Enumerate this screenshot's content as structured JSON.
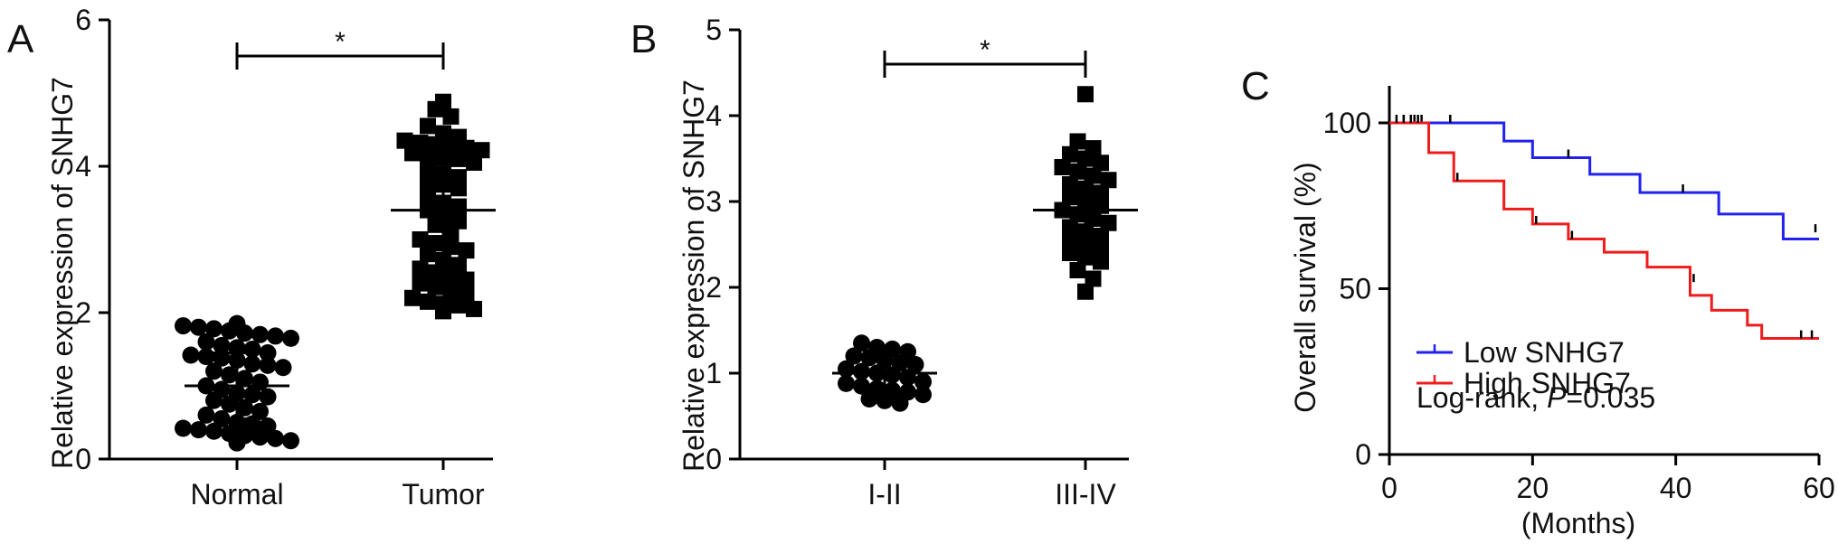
{
  "chart_data": [
    {
      "panel": "A",
      "type": "scatter",
      "ylabel": "Relative expression of SNHG7",
      "ylim": [
        0,
        6
      ],
      "yticks": [
        0,
        2,
        4,
        6
      ],
      "categories": [
        "Normal",
        "Tumor"
      ],
      "significance": "*",
      "series": [
        {
          "category": "Normal",
          "marker": "circle",
          "mean": 1.0,
          "sd": 0.45,
          "values": [
            1.85,
            1.82,
            1.8,
            1.78,
            1.75,
            1.72,
            1.7,
            1.68,
            1.65,
            1.6,
            1.55,
            1.52,
            1.5,
            1.45,
            1.42,
            1.4,
            1.38,
            1.35,
            1.3,
            1.28,
            1.25,
            1.2,
            1.15,
            1.1,
            1.05,
            1.0,
            0.95,
            0.9,
            0.88,
            0.85,
            0.8,
            0.75,
            0.7,
            0.65,
            0.6,
            0.55,
            0.5,
            0.48,
            0.45,
            0.42,
            0.4,
            0.38,
            0.35,
            0.32,
            0.3,
            0.28,
            0.25,
            0.22
          ]
        },
        {
          "category": "Tumor",
          "marker": "square",
          "mean": 3.4,
          "sd": 0.85,
          "values": [
            4.88,
            4.78,
            4.68,
            4.55,
            4.45,
            4.4,
            4.35,
            4.32,
            4.3,
            4.28,
            4.25,
            4.22,
            4.18,
            4.15,
            4.12,
            4.1,
            4.05,
            3.98,
            3.9,
            3.85,
            3.8,
            3.75,
            3.7,
            3.6,
            3.5,
            3.45,
            3.4,
            3.32,
            3.25,
            3.2,
            3.1,
            3.0,
            2.95,
            2.9,
            2.85,
            2.8,
            2.72,
            2.65,
            2.6,
            2.55,
            2.5,
            2.45,
            2.4,
            2.35,
            2.3,
            2.25,
            2.2,
            2.15,
            2.12,
            2.1,
            2.05,
            2.02
          ]
        }
      ]
    },
    {
      "panel": "B",
      "type": "scatter",
      "ylabel": "Relative expression of SNHG7",
      "ylim": [
        0,
        5
      ],
      "yticks": [
        0,
        1,
        2,
        3,
        4,
        5
      ],
      "categories": [
        "I-II",
        "III-IV"
      ],
      "significance": "*",
      "series": [
        {
          "category": "I-II",
          "marker": "circle",
          "mean": 1.0,
          "sd": 0.2,
          "values": [
            1.35,
            1.3,
            1.28,
            1.25,
            1.2,
            1.18,
            1.15,
            1.12,
            1.1,
            1.05,
            1.02,
            1.0,
            0.98,
            0.95,
            0.9,
            0.88,
            0.85,
            0.82,
            0.8,
            0.78,
            0.75,
            0.7,
            0.68,
            0.65
          ]
        },
        {
          "category": "III-IV",
          "marker": "square",
          "mean": 2.9,
          "sd": 0.52,
          "values": [
            4.25,
            3.7,
            3.62,
            3.55,
            3.5,
            3.45,
            3.4,
            3.35,
            3.3,
            3.25,
            3.2,
            3.15,
            3.1,
            3.05,
            3.0,
            2.95,
            2.9,
            2.85,
            2.8,
            2.75,
            2.7,
            2.65,
            2.6,
            2.55,
            2.5,
            2.45,
            2.4,
            2.35,
            2.3,
            2.2,
            2.1,
            1.95
          ]
        }
      ]
    },
    {
      "panel": "C",
      "type": "line",
      "ylabel": "Overall survival (%)",
      "xlabel": "(Months)",
      "xlim": [
        0,
        60
      ],
      "ylim": [
        0,
        100
      ],
      "xticks": [
        0,
        20,
        40,
        60
      ],
      "yticks": [
        0,
        50,
        100
      ],
      "annotation_prefix": "Log-rank, ",
      "annotation_p": "P",
      "annotation_value": "=0.035",
      "series": [
        {
          "name": "Low SNHG7",
          "color": "#2121f0",
          "steps": [
            [
              0,
              100
            ],
            [
              16,
              100
            ],
            [
              16,
              94.5
            ],
            [
              20,
              94.5
            ],
            [
              20,
              89.5
            ],
            [
              28,
              89.5
            ],
            [
              28,
              84.5
            ],
            [
              35,
              84.5
            ],
            [
              35,
              79
            ],
            [
              46,
              79
            ],
            [
              46,
              72.5
            ],
            [
              55,
              72.5
            ],
            [
              55,
              65
            ],
            [
              60,
              65
            ]
          ],
          "censor": [
            [
              2,
              100
            ],
            [
              3.5,
              100
            ],
            [
              4.5,
              100
            ],
            [
              8.5,
              100
            ],
            [
              25,
              89.5
            ],
            [
              41,
              79
            ],
            [
              59.5,
              67
            ]
          ]
        },
        {
          "name": "High SNHG7",
          "color": "#ee1c1c",
          "steps": [
            [
              0,
              100
            ],
            [
              5.5,
              100
            ],
            [
              5.5,
              91
            ],
            [
              9,
              91
            ],
            [
              9,
              82.5
            ],
            [
              16,
              82.5
            ],
            [
              16,
              74
            ],
            [
              20,
              74
            ],
            [
              20,
              69.5
            ],
            [
              25,
              69.5
            ],
            [
              25,
              65
            ],
            [
              30,
              65
            ],
            [
              30,
              61
            ],
            [
              36,
              61
            ],
            [
              36,
              56.5
            ],
            [
              42,
              56.5
            ],
            [
              42,
              48
            ],
            [
              45,
              48
            ],
            [
              45,
              43.5
            ],
            [
              50,
              43.5
            ],
            [
              50,
              39
            ],
            [
              52,
              39
            ],
            [
              52,
              35
            ],
            [
              60,
              35
            ]
          ],
          "censor": [
            [
              1,
              100
            ],
            [
              2,
              100
            ],
            [
              3,
              100
            ],
            [
              4,
              100
            ],
            [
              9.5,
              82.5
            ],
            [
              20.5,
              69.5
            ],
            [
              25.5,
              65
            ],
            [
              42.5,
              52
            ],
            [
              57.5,
              35
            ],
            [
              59,
              35
            ]
          ]
        }
      ]
    }
  ],
  "panel_labels": [
    "A",
    "B",
    "C"
  ]
}
